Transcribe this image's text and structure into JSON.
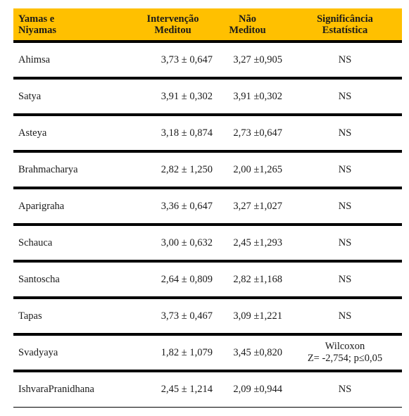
{
  "header": {
    "col1_line1": "Yamas e",
    "col1_line2": "Niyamas",
    "col2_line1": "Intervenção",
    "col2_line2": "Meditou",
    "col3_line1": "Não",
    "col3_line2": "Meditou",
    "col4_line1": "Significância",
    "col4_line2": "Estatística"
  },
  "rows": [
    {
      "name": "Ahimsa",
      "intervencao": "3,73 ± 0,647",
      "nao_meditou": "3,27 ±0,905",
      "sig_line1": "NS",
      "sig_line2": ""
    },
    {
      "name": "Satya",
      "intervencao": "3,91 ± 0,302",
      "nao_meditou": "3,91 ±0,302",
      "sig_line1": "NS",
      "sig_line2": ""
    },
    {
      "name": "Asteya",
      "intervencao": "3,18 ± 0,874",
      "nao_meditou": "2,73 ±0,647",
      "sig_line1": "NS",
      "sig_line2": ""
    },
    {
      "name": "Brahmacharya",
      "intervencao": "2,82 ± 1,250",
      "nao_meditou": "2,00 ±1,265",
      "sig_line1": "NS",
      "sig_line2": ""
    },
    {
      "name": "Aparigraha",
      "intervencao": "3,36 ± 0,647",
      "nao_meditou": "3,27 ±1,027",
      "sig_line1": "NS",
      "sig_line2": ""
    },
    {
      "name": "Schauca",
      "intervencao": "3,00 ± 0,632",
      "nao_meditou": "2,45 ±1,293",
      "sig_line1": "NS",
      "sig_line2": ""
    },
    {
      "name": "Santoscha",
      "intervencao": "2,64 ± 0,809",
      "nao_meditou": "2,82 ±1,168",
      "sig_line1": "NS",
      "sig_line2": ""
    },
    {
      "name": "Tapas",
      "intervencao": "3,73 ± 0,467",
      "nao_meditou": "3,09 ±1,221",
      "sig_line1": "NS",
      "sig_line2": ""
    },
    {
      "name": "Svadyaya",
      "intervencao": "1,82 ± 1,079",
      "nao_meditou": "3,45 ±0,820",
      "sig_line1": "Wilcoxon",
      "sig_line2": "Z= -2,754; p≤0,05"
    },
    {
      "name": "IshvaraPranidhana",
      "intervencao": "2,45 ± 1,214",
      "nao_meditou": "2,09 ±0,944",
      "sig_line1": "NS",
      "sig_line2": ""
    }
  ]
}
